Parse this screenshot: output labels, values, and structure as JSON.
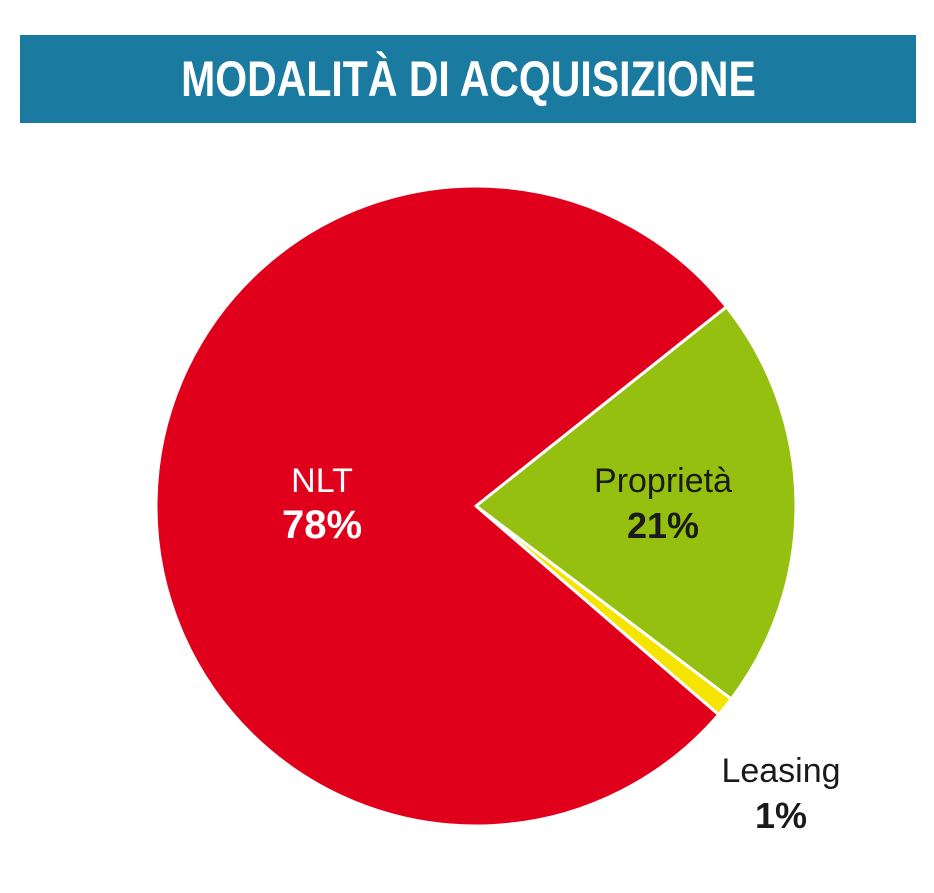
{
  "header": {
    "title": "MODALITÀ DI ACQUISIZIONE"
  },
  "colors": {
    "header_bg": "#1a7aa0",
    "nlt": "#e0001b",
    "proprieta": "#95c00f",
    "leasing": "#f5e400"
  },
  "chart_data": {
    "type": "pie",
    "title": "MODALITÀ DI ACQUISIZIONE",
    "slices": [
      {
        "label": "NLT",
        "value": 78,
        "display": "78%",
        "color": "#e0001b",
        "label_color": "#ffffff"
      },
      {
        "label": "Proprietà",
        "value": 21,
        "display": "21%",
        "color": "#95c00f",
        "label_color": "#1a1a1a"
      },
      {
        "label": "Leasing",
        "value": 1,
        "display": "1%",
        "color": "#f5e400",
        "label_color": "#1a1a1a"
      }
    ]
  }
}
